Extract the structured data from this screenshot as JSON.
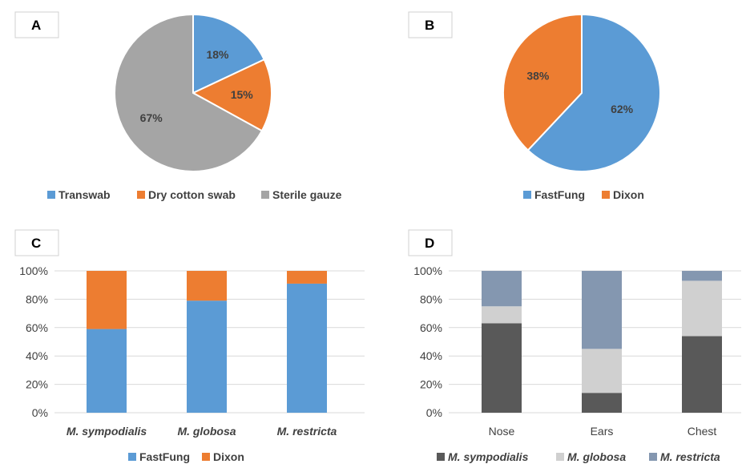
{
  "chart_data": [
    {
      "panel": "A",
      "type": "pie",
      "slices": [
        {
          "name": "Transwab",
          "value": 18,
          "label": "18%",
          "color": "#5b9bd5"
        },
        {
          "name": "Dry cotton swab",
          "value": 15,
          "label": "15%",
          "color": "#ed7d31"
        },
        {
          "name": "Sterile gauze",
          "value": 67,
          "label": "67%",
          "color": "#a5a5a5"
        }
      ],
      "legend_position": "bottom"
    },
    {
      "panel": "B",
      "type": "pie",
      "slices": [
        {
          "name": "FastFung",
          "value": 62,
          "label": "62%",
          "color": "#5b9bd5"
        },
        {
          "name": "Dixon",
          "value": 38,
          "label": "38%",
          "color": "#ed7d31"
        }
      ],
      "legend_position": "bottom"
    },
    {
      "panel": "C",
      "type": "bar",
      "stacked": true,
      "categories": [
        "M. sympodialis",
        "M. globosa",
        "M. restricta"
      ],
      "series": [
        {
          "name": "FastFung",
          "color": "#5b9bd5",
          "values": [
            59,
            79,
            91
          ]
        },
        {
          "name": "Dixon",
          "color": "#ed7d31",
          "values": [
            41,
            21,
            9
          ]
        }
      ],
      "yticks": [
        "0%",
        "20%",
        "40%",
        "60%",
        "80%",
        "100%"
      ],
      "ylim": [
        0,
        100
      ],
      "grid": true,
      "legend_position": "bottom",
      "italic_categories": true
    },
    {
      "panel": "D",
      "type": "bar",
      "stacked": true,
      "categories": [
        "Nose",
        "Ears",
        "Chest"
      ],
      "series": [
        {
          "name": "M. sympodialis",
          "color": "#595959",
          "values": [
            63,
            14,
            54
          ]
        },
        {
          "name": "M. globosa",
          "color": "#d0d0d0",
          "values": [
            12,
            31,
            39
          ]
        },
        {
          "name": "M. restricta",
          "color": "#8497b0",
          "values": [
            25,
            55,
            7
          ]
        }
      ],
      "yticks": [
        "0%",
        "20%",
        "40%",
        "60%",
        "80%",
        "100%"
      ],
      "ylim": [
        0,
        100
      ],
      "grid": true,
      "legend_position": "bottom",
      "italic_legend": true
    }
  ]
}
